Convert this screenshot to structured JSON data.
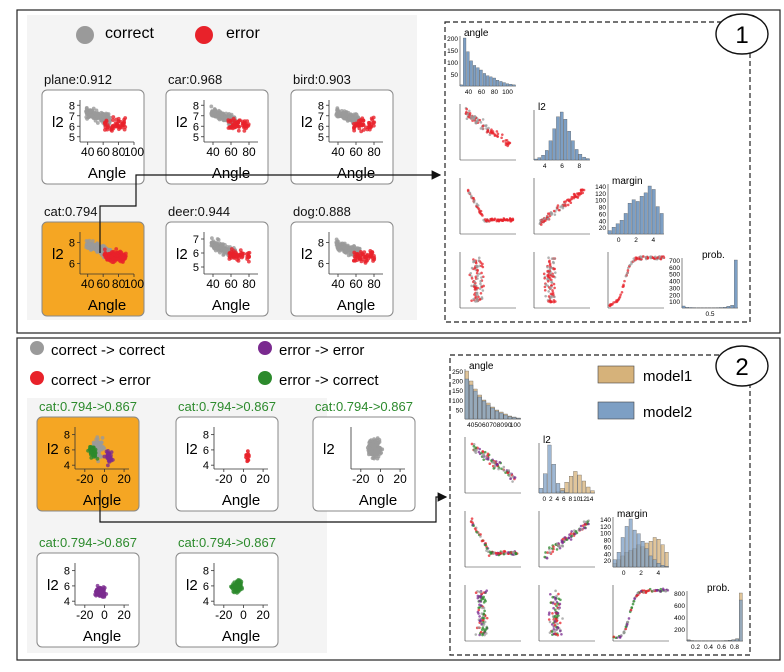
{
  "colors": {
    "correct": "#9a9a9a",
    "error": "#e8222a",
    "correct_error": "#e8222a",
    "error_error": "#7a2a8f",
    "error_correct": "#2c8a2c",
    "selected": "#f5a623",
    "bar_blue": "#7d9fc4",
    "bar_tan": "#d6b27a"
  },
  "panel1": {
    "number": "1",
    "legend": [
      {
        "label": "correct",
        "color": "#9a9a9a"
      },
      {
        "label": "error",
        "color": "#e8222a"
      }
    ],
    "matrix_labels": {
      "angle": "angle",
      "l2": "l2",
      "margin": "margin",
      "prob": "prob."
    }
  },
  "panel2": {
    "number": "2",
    "legend": [
      {
        "label": "correct -> correct",
        "color": "#9a9a9a"
      },
      {
        "label": "error -> error",
        "color": "#7a2a8f"
      },
      {
        "label": "correct -> error",
        "color": "#e8222a"
      },
      {
        "label": "error -> correct",
        "color": "#2c8a2c"
      }
    ],
    "model_legend": [
      {
        "label": "model1",
        "color": "#d6b27a"
      },
      {
        "label": "model2",
        "color": "#7d9fc4"
      }
    ],
    "matrix_labels": {
      "angle": "angle",
      "l2": "l2",
      "margin": "margin",
      "prob": "prob."
    }
  },
  "chart_data": [
    {
      "type": "scatter",
      "panel": "1",
      "xlabel": "Angle",
      "ylabel": "l2",
      "plots": [
        {
          "title": "plane:0.912",
          "selected": false,
          "xticks": [
            "40",
            "60",
            "80",
            "100"
          ],
          "yticks": [
            "5",
            "6",
            "7",
            "8"
          ],
          "xlim": [
            30,
            100
          ],
          "ylim": [
            4.5,
            8.5
          ]
        },
        {
          "title": "car:0.968",
          "selected": false,
          "xticks": [
            "40",
            "60",
            "80"
          ],
          "yticks": [
            "5",
            "6",
            "7",
            "8"
          ],
          "xlim": [
            30,
            90
          ],
          "ylim": [
            4.5,
            8.5
          ]
        },
        {
          "title": "bird:0.903",
          "selected": false,
          "xticks": [
            "40",
            "60",
            "80"
          ],
          "yticks": [
            "5",
            "6",
            "7",
            "8"
          ],
          "xlim": [
            30,
            90
          ],
          "ylim": [
            4.5,
            8.5
          ]
        },
        {
          "title": "cat:0.794",
          "selected": true,
          "xticks": [
            "40",
            "60",
            "80",
            "100"
          ],
          "yticks": [
            "6",
            "8"
          ],
          "xlim": [
            30,
            100
          ],
          "ylim": [
            5,
            9
          ]
        },
        {
          "title": "deer:0.944",
          "selected": false,
          "xticks": [
            "40",
            "60",
            "80"
          ],
          "yticks": [
            "5",
            "6",
            "7"
          ],
          "xlim": [
            30,
            90
          ],
          "ylim": [
            4.5,
            7.5
          ]
        },
        {
          "title": "dog:0.888",
          "selected": false,
          "xticks": [
            "40",
            "60",
            "80"
          ],
          "yticks": [
            "6",
            "8"
          ],
          "xlim": [
            30,
            90
          ],
          "ylim": [
            5,
            9
          ]
        }
      ]
    },
    {
      "type": "scatter",
      "panel": "2",
      "xlabel": "Angle",
      "ylabel": "l2",
      "plots": [
        {
          "title": "cat:0.794->0.867",
          "selected": true,
          "xticks": [
            "-20",
            "0",
            "20"
          ],
          "yticks": [
            "4",
            "6",
            "8"
          ],
          "xlim": [
            -30,
            25
          ],
          "ylim": [
            3.5,
            9
          ]
        },
        {
          "title": "cat:0.794->0.867",
          "selected": false,
          "xticks": [
            "-20",
            "0",
            "20"
          ],
          "yticks": [
            "4",
            "6",
            "8"
          ],
          "xlim": [
            -30,
            25
          ],
          "ylim": [
            3.5,
            9
          ]
        },
        {
          "title": "cat:0.794->0.867",
          "selected": false,
          "xticks": [
            "-20",
            "0",
            "20"
          ],
          "yticks": [],
          "xlim": [
            -30,
            25
          ],
          "ylim": [
            3.5,
            9
          ]
        },
        {
          "title": "cat:0.794->0.867",
          "selected": false,
          "xticks": [
            "-20",
            "0",
            "20"
          ],
          "yticks": [
            "4",
            "6",
            "8"
          ],
          "xlim": [
            -30,
            25
          ],
          "ylim": [
            3.5,
            9
          ]
        },
        {
          "title": "cat:0.794->0.867",
          "selected": false,
          "xticks": [
            "-20",
            "0",
            "20"
          ],
          "yticks": [
            "4",
            "6",
            "8"
          ],
          "xlim": [
            -30,
            25
          ],
          "ylim": [
            3.5,
            9
          ]
        }
      ]
    },
    {
      "type": "bar",
      "panel": "1",
      "name": "angle histogram",
      "yticks": [
        "50",
        "100",
        "150",
        "200"
      ],
      "xticks": [
        "40",
        "60",
        "80",
        "100"
      ],
      "values": [
        5,
        210,
        150,
        110,
        90,
        80,
        70,
        55,
        45,
        40,
        35,
        25,
        20,
        15,
        10,
        8,
        5
      ]
    },
    {
      "type": "bar",
      "panel": "1",
      "name": "l2 histogram",
      "xticks": [
        "4",
        "6",
        "8"
      ],
      "values": [
        2,
        5,
        10,
        20,
        40,
        65,
        90,
        100,
        85,
        60,
        40,
        22,
        12,
        6,
        3
      ]
    },
    {
      "type": "bar",
      "panel": "1",
      "name": "margin histogram",
      "yticks": [
        "20",
        "40",
        "60",
        "80",
        "100",
        "120",
        "140"
      ],
      "xticks": [
        "0",
        "2",
        "4"
      ],
      "values": [
        10,
        20,
        30,
        40,
        60,
        90,
        100,
        95,
        110,
        120,
        140,
        130,
        80,
        60
      ]
    },
    {
      "type": "bar",
      "panel": "1",
      "name": "prob. histogram",
      "yticks": [
        "100",
        "200",
        "300",
        "400",
        "500",
        "600",
        "700"
      ],
      "xticks": [
        "0.5"
      ],
      "values": [
        30,
        10,
        8,
        6,
        5,
        5,
        4,
        4,
        5,
        6,
        8,
        12,
        25,
        40,
        720
      ]
    },
    {
      "type": "bar",
      "panel": "2",
      "name": "angle histogram",
      "yticks": [
        "50",
        "100",
        "150",
        "200",
        "250"
      ],
      "xticks": [
        "40",
        "50",
        "60",
        "70",
        "80",
        "90",
        "100"
      ],
      "series": [
        {
          "name": "model1",
          "values": [
            240,
            190,
            150,
            120,
            95,
            80,
            60,
            45,
            35,
            25,
            15,
            10,
            5
          ]
        },
        {
          "name": "model2",
          "values": [
            200,
            170,
            140,
            110,
            90,
            70,
            55,
            40,
            30,
            20,
            12,
            8,
            4
          ]
        }
      ]
    },
    {
      "type": "bar",
      "panel": "2",
      "name": "l2 histogram",
      "xticks": [
        "0",
        "2",
        "4",
        "6",
        "8",
        "10",
        "12",
        "14"
      ],
      "series": [
        {
          "name": "model1",
          "values": [
            0,
            0,
            0,
            0,
            5,
            20,
            45,
            70,
            90,
            75,
            50,
            25,
            10
          ]
        },
        {
          "name": "model2",
          "values": [
            20,
            80,
            200,
            120,
            40,
            10,
            2,
            0,
            0,
            0,
            0,
            0,
            0
          ]
        }
      ]
    },
    {
      "type": "bar",
      "panel": "2",
      "name": "margin histogram",
      "yticks": [
        "20",
        "40",
        "60",
        "80",
        "100",
        "120",
        "140"
      ],
      "xticks": [
        "0",
        "2",
        "4"
      ],
      "series": [
        {
          "name": "model1",
          "values": [
            10,
            20,
            30,
            40,
            45,
            50,
            60,
            55,
            65,
            70,
            80,
            75,
            60,
            40
          ]
        },
        {
          "name": "model2",
          "values": [
            20,
            40,
            80,
            110,
            130,
            100,
            90,
            70,
            50,
            30,
            20,
            10,
            5,
            2
          ]
        }
      ]
    },
    {
      "type": "bar",
      "panel": "2",
      "name": "prob. histogram",
      "yticks": [
        "200",
        "400",
        "600",
        "800"
      ],
      "xticks": [
        "0.2",
        "0.4",
        "0.6",
        "0.8"
      ],
      "series": [
        {
          "name": "model1",
          "values": [
            20,
            8,
            5,
            4,
            3,
            3,
            3,
            4,
            5,
            6,
            8,
            12,
            20,
            40,
            820
          ]
        },
        {
          "name": "model2",
          "values": [
            15,
            6,
            4,
            3,
            3,
            3,
            3,
            3,
            4,
            5,
            6,
            10,
            18,
            35,
            700
          ]
        }
      ]
    }
  ]
}
